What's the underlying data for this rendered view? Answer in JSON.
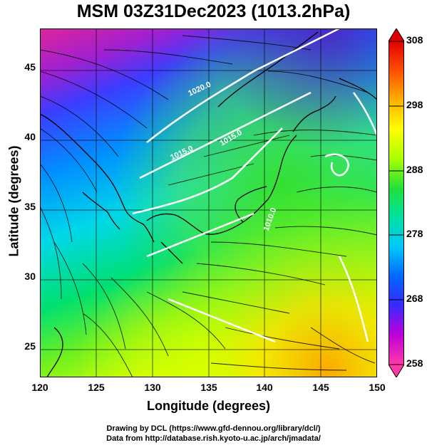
{
  "title": "MSM 03Z31Dec2023 (1013.2hPa)",
  "axes": {
    "xlabel": "Longitude (degrees)",
    "ylabel": "Latitude  (degrees)",
    "xlim": [
      120,
      150
    ],
    "ylim": [
      23,
      48
    ],
    "xticks": [
      "120",
      "125",
      "130",
      "135",
      "140",
      "145",
      "150"
    ],
    "yticks": [
      "25",
      "30",
      "35",
      "40",
      "45"
    ]
  },
  "colorbar": {
    "min": 258,
    "max": 308,
    "ticks": [
      "258",
      "268",
      "278",
      "288",
      "298",
      "308"
    ],
    "colors": [
      "#ff3aa8",
      "#c000d8",
      "#3a28ff",
      "#0068ff",
      "#00c8ff",
      "#00e0a0",
      "#22e03a",
      "#a8ff00",
      "#ffff00",
      "#ffb000",
      "#ff5000",
      "#e00000"
    ]
  },
  "isobars": [
    "1020.0",
    "1015.0",
    "1015.0",
    "1010.0"
  ],
  "credits": {
    "line1": "Drawing by DCL (https://www.gfd-dennou.org/library/dcl/)",
    "line2": "Data from http://database.rish.kyoto-u.ac.jp/arch/jmadata/"
  }
}
